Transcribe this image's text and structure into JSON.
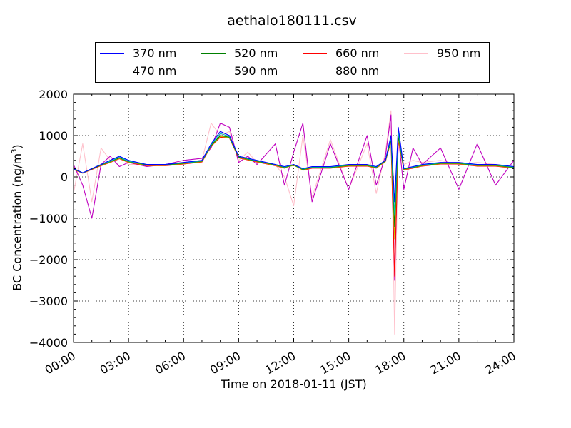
{
  "chart_data": {
    "type": "line",
    "title": "aethalo180111.csv",
    "xlabel": "Time on 2018-01-11 (JST)",
    "ylabel": "BC Concentration (ng/m",
    "ylabel_sup": "3",
    "ylabel_close": ")",
    "xlim": [
      "00:00",
      "24:00"
    ],
    "ylim": [
      -4000,
      2000
    ],
    "x_ticks": [
      "00:00",
      "03:00",
      "06:00",
      "09:00",
      "12:00",
      "15:00",
      "18:00",
      "21:00",
      "24:00"
    ],
    "y_ticks": [
      "2000",
      "1000",
      "0",
      "−1000",
      "−2000",
      "−3000",
      "−4000"
    ],
    "grid": true,
    "legend_placement": "top-center above plot",
    "x_hours": [
      0,
      0.5,
      1,
      1.5,
      2,
      2.5,
      3,
      4,
      5,
      6,
      7,
      7.5,
      8,
      8.5,
      9,
      9.5,
      10,
      11,
      11.5,
      12,
      12.5,
      13,
      14,
      15,
      16,
      16.5,
      17,
      17.3,
      17.5,
      17.7,
      18,
      18.5,
      19,
      20,
      21,
      22,
      23,
      24
    ],
    "series": [
      {
        "name": "370 nm",
        "color": "#0000ff",
        "values": [
          200,
          100,
          200,
          300,
          400,
          500,
          400,
          300,
          300,
          350,
          400,
          800,
          1100,
          1000,
          500,
          450,
          400,
          300,
          250,
          300,
          200,
          250,
          250,
          300,
          300,
          250,
          400,
          1000,
          -600,
          1200,
          200,
          250,
          300,
          350,
          350,
          300,
          300,
          250
        ]
      },
      {
        "name": "470 nm",
        "color": "#00bfbf",
        "values": [
          200,
          100,
          200,
          300,
          380,
          480,
          380,
          300,
          300,
          340,
          390,
          780,
          1050,
          980,
          500,
          440,
          390,
          300,
          240,
          300,
          190,
          240,
          240,
          290,
          290,
          240,
          400,
          950,
          -900,
          1100,
          200,
          240,
          290,
          340,
          340,
          290,
          290,
          240
        ]
      },
      {
        "name": "520 nm",
        "color": "#008000",
        "values": [
          190,
          100,
          190,
          290,
          370,
          460,
          370,
          290,
          290,
          330,
          380,
          760,
          1000,
          960,
          480,
          430,
          380,
          290,
          230,
          290,
          180,
          230,
          230,
          280,
          280,
          230,
          390,
          900,
          -1200,
          1000,
          190,
          230,
          280,
          330,
          330,
          280,
          280,
          230
        ]
      },
      {
        "name": "590 nm",
        "color": "#bfbf00",
        "values": [
          190,
          90,
          190,
          280,
          360,
          450,
          360,
          280,
          280,
          320,
          370,
          750,
          980,
          950,
          470,
          420,
          370,
          280,
          220,
          280,
          170,
          220,
          220,
          270,
          270,
          220,
          380,
          880,
          -1500,
          950,
          180,
          220,
          270,
          320,
          320,
          270,
          270,
          220
        ]
      },
      {
        "name": "660 nm",
        "color": "#ff0000",
        "values": [
          180,
          90,
          180,
          270,
          350,
          440,
          350,
          270,
          270,
          310,
          360,
          740,
          960,
          940,
          460,
          410,
          360,
          270,
          210,
          300,
          160,
          210,
          210,
          260,
          260,
          210,
          370,
          860,
          -2400,
          900,
          170,
          210,
          260,
          310,
          310,
          260,
          260,
          210
        ]
      },
      {
        "name": "880 nm",
        "color": "#bf00bf",
        "values": [
          300,
          -200,
          -1000,
          300,
          500,
          250,
          350,
          250,
          300,
          400,
          450,
          700,
          1300,
          1200,
          350,
          500,
          300,
          800,
          -200,
          600,
          1300,
          -600,
          800,
          -300,
          1000,
          -200,
          500,
          1500,
          -2500,
          1000,
          -300,
          700,
          300,
          700,
          -300,
          800,
          -200,
          400
        ]
      },
      {
        "name": "950 nm",
        "color": "#ffc0cb",
        "values": [
          -400,
          800,
          -600,
          700,
          400,
          500,
          300,
          300,
          300,
          350,
          400,
          1300,
          1000,
          1100,
          400,
          600,
          350,
          300,
          0,
          -700,
          1000,
          -500,
          900,
          -300,
          800,
          -400,
          600,
          1600,
          -3800,
          900,
          300,
          400,
          350,
          400,
          300,
          350,
          300,
          250
        ]
      }
    ]
  }
}
